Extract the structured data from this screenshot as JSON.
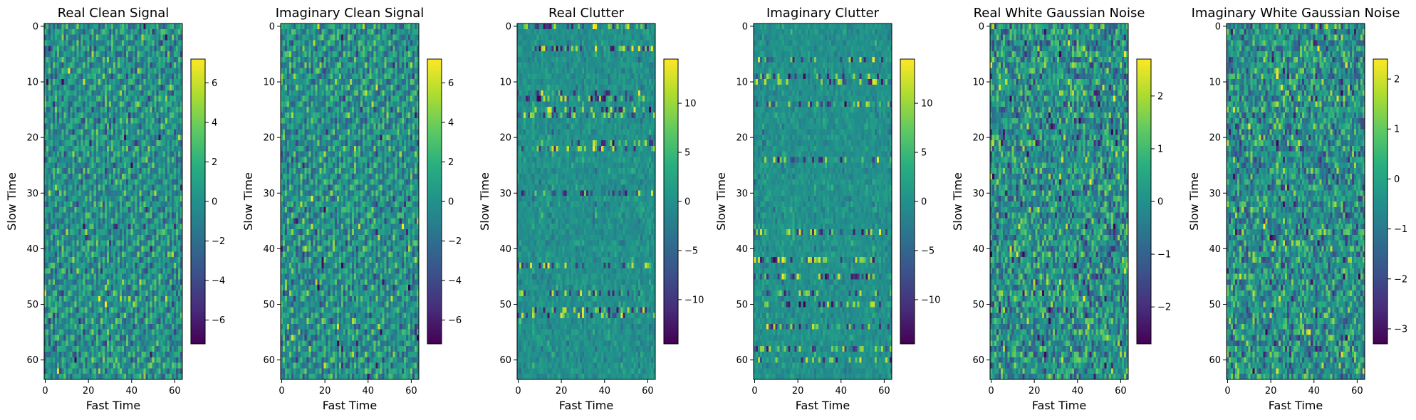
{
  "chart_data": [
    {
      "type": "heatmap",
      "title": "Real Clean Signal",
      "xlabel": "Fast Time",
      "ylabel": "Slow Time",
      "x_ticks": [
        0,
        20,
        40,
        60
      ],
      "y_ticks": [
        0,
        10,
        20,
        30,
        40,
        50,
        60
      ],
      "rows": 64,
      "cols": 64,
      "colormap": "viridis",
      "value_range": [
        -7.2,
        7.2
      ],
      "colorbar_ticks": [
        -6,
        -4,
        -2,
        0,
        2,
        4,
        6
      ],
      "pattern": "diagonal-stripes",
      "seed": 11
    },
    {
      "type": "heatmap",
      "title": "Imaginary Clean Signal",
      "xlabel": "Fast Time",
      "ylabel": "Slow Time",
      "x_ticks": [
        0,
        20,
        40,
        60
      ],
      "y_ticks": [
        0,
        10,
        20,
        30,
        40,
        50,
        60
      ],
      "rows": 64,
      "cols": 64,
      "colormap": "viridis",
      "value_range": [
        -7.2,
        7.2
      ],
      "colorbar_ticks": [
        -6,
        -4,
        -2,
        0,
        2,
        4,
        6
      ],
      "pattern": "diagonal-stripes",
      "seed": 23
    },
    {
      "type": "heatmap",
      "title": "Real Clutter",
      "xlabel": "Fast Time",
      "ylabel": "Slow Time",
      "x_ticks": [
        0,
        20,
        40,
        60
      ],
      "y_ticks": [
        0,
        10,
        20,
        30,
        40,
        50,
        60
      ],
      "rows": 64,
      "cols": 64,
      "colormap": "viridis",
      "value_range": [
        -14.5,
        14.5
      ],
      "colorbar_ticks": [
        -10,
        -5,
        0,
        5,
        10
      ],
      "pattern": "clutter",
      "seed": 37
    },
    {
      "type": "heatmap",
      "title": "Imaginary Clutter",
      "xlabel": "Fast Time",
      "ylabel": "Slow Time",
      "x_ticks": [
        0,
        20,
        40,
        60
      ],
      "y_ticks": [
        0,
        10,
        20,
        30,
        40,
        50,
        60
      ],
      "rows": 64,
      "cols": 64,
      "colormap": "viridis",
      "value_range": [
        -14.5,
        14.5
      ],
      "colorbar_ticks": [
        -10,
        -5,
        0,
        5,
        10
      ],
      "pattern": "clutter",
      "seed": 41
    },
    {
      "type": "heatmap",
      "title": "Real White Gaussian Noise",
      "xlabel": "Fast Time",
      "ylabel": "Slow Time",
      "x_ticks": [
        0,
        20,
        40,
        60
      ],
      "y_ticks": [
        0,
        10,
        20,
        30,
        40,
        50,
        60
      ],
      "rows": 64,
      "cols": 64,
      "colormap": "viridis",
      "value_range": [
        -2.7,
        2.7
      ],
      "colorbar_ticks": [
        -2,
        -1,
        0,
        1,
        2
      ],
      "pattern": "noise",
      "seed": 53
    },
    {
      "type": "heatmap",
      "title": "Imaginary White Gaussian Noise",
      "xlabel": "Fast Time",
      "ylabel": "Slow Time",
      "x_ticks": [
        0,
        20,
        40,
        60
      ],
      "y_ticks": [
        0,
        10,
        20,
        30,
        40,
        50,
        60
      ],
      "rows": 64,
      "cols": 64,
      "colormap": "viridis",
      "value_range": [
        -3.3,
        2.4
      ],
      "colorbar_ticks": [
        -3,
        -2,
        -1,
        0,
        1,
        2
      ],
      "pattern": "noise",
      "seed": 67
    }
  ]
}
